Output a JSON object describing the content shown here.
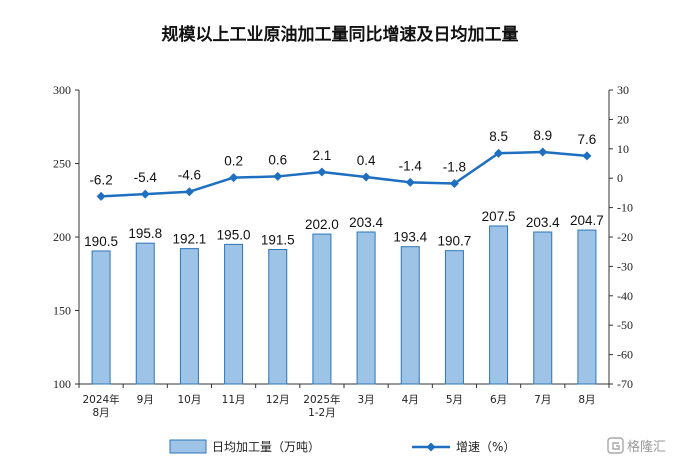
{
  "chart_data": {
    "type": "bar",
    "title": "规模以上工业原油加工量同比增速及日均加工量",
    "categories": [
      [
        "2024年",
        "8月"
      ],
      [
        "9月"
      ],
      [
        "10月"
      ],
      [
        "11月"
      ],
      [
        "12月"
      ],
      [
        "2025年",
        "1-2月"
      ],
      [
        "3月"
      ],
      [
        "4月"
      ],
      [
        "5月"
      ],
      [
        "6月"
      ],
      [
        "7月"
      ],
      [
        "8月"
      ]
    ],
    "series": [
      {
        "name": "日均加工量（万吨）",
        "type": "bar",
        "axis": "left",
        "color": "#9dc3e6",
        "border": "#2e75b6",
        "values": [
          190.5,
          195.8,
          192.1,
          195.0,
          191.5,
          202.0,
          203.4,
          193.4,
          190.7,
          207.5,
          203.4,
          204.7
        ],
        "labels": [
          "190.5",
          "195.8",
          "192.1",
          "195.0",
          "191.5",
          "202.0",
          "203.4",
          "193.4",
          "190.7",
          "207.5",
          "203.4",
          "204.7"
        ]
      },
      {
        "name": "增速（%）",
        "type": "line",
        "axis": "right",
        "color": "#1f6fc0",
        "values": [
          -6.2,
          -5.4,
          -4.6,
          0.2,
          0.6,
          2.1,
          0.4,
          -1.4,
          -1.8,
          8.5,
          8.9,
          7.6
        ],
        "labels": [
          "-6.2",
          "-5.4",
          "-4.6",
          "0.2",
          "0.6",
          "2.1",
          "0.4",
          "-1.4",
          "-1.8",
          "8.5",
          "8.9",
          "7.6"
        ]
      }
    ],
    "y_left": {
      "min": 100,
      "max": 300,
      "ticks": [
        "100",
        "150",
        "200",
        "250",
        "300"
      ]
    },
    "y_right": {
      "min": -70,
      "max": 30,
      "ticks": [
        "30",
        "20",
        "10",
        "0",
        "-10",
        "-20",
        "-30",
        "-40",
        "-50",
        "-60",
        "-70"
      ]
    },
    "grid": false,
    "legend_position": "bottom"
  },
  "watermark": {
    "text": "格隆汇",
    "icon": "gelonghui-logo-icon"
  }
}
